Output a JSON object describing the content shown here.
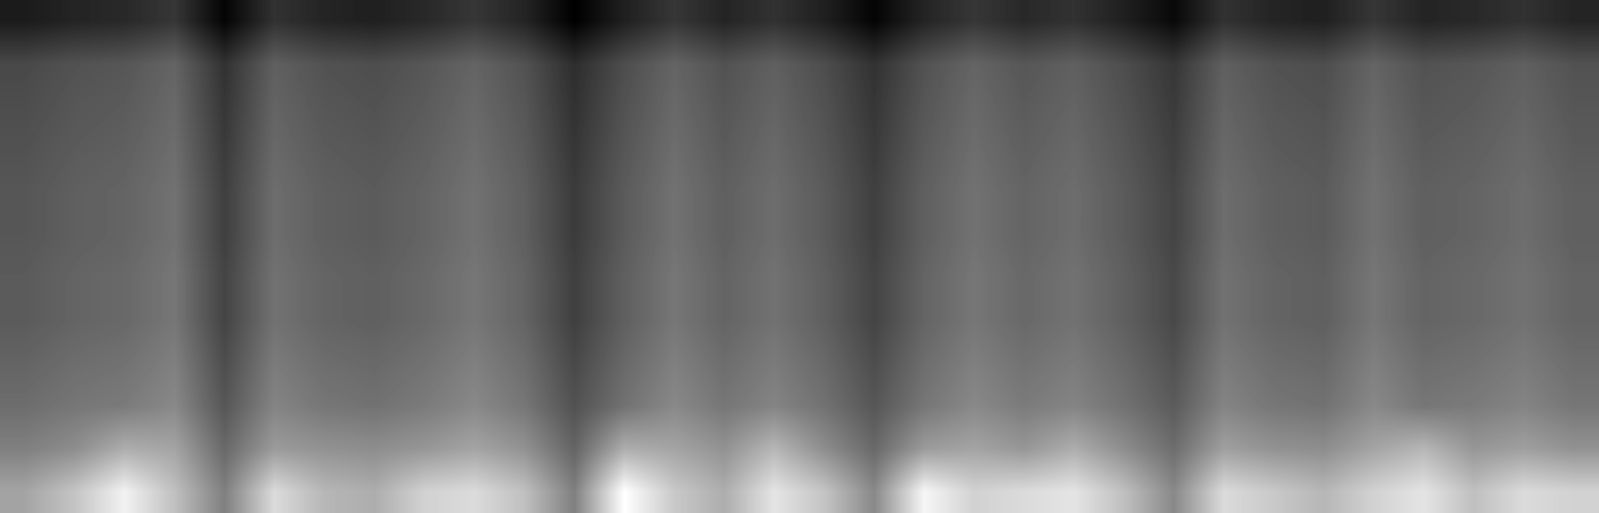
{
  "chart_data": {
    "type": "heatmap",
    "color": "gray",
    "tick_labels": false,
    "cells": [
      [
        8,
        10,
        11,
        14,
        3,
        13,
        10,
        9,
        11,
        14,
        10,
        2,
        9,
        14,
        10,
        13,
        9,
        3,
        10,
        14,
        11,
        13,
        9,
        4,
        13,
        10,
        9,
        14,
        10,
        11,
        13,
        10
      ],
      [
        18,
        20,
        21,
        24,
        13,
        23,
        20,
        19,
        21,
        24,
        20,
        12,
        19,
        24,
        20,
        23,
        19,
        13,
        20,
        24,
        21,
        23,
        19,
        14,
        23,
        20,
        19,
        24,
        20,
        21,
        23,
        20
      ],
      [
        19,
        21,
        22,
        25,
        14,
        24,
        21,
        20,
        22,
        25,
        21,
        13,
        20,
        25,
        21,
        24,
        20,
        14,
        21,
        25,
        22,
        24,
        20,
        15,
        24,
        21,
        20,
        25,
        21,
        22,
        24,
        21
      ],
      [
        20,
        22,
        23,
        26,
        15,
        25,
        22,
        21,
        23,
        26,
        22,
        14,
        21,
        26,
        22,
        25,
        21,
        15,
        22,
        26,
        23,
        25,
        21,
        16,
        25,
        22,
        21,
        26,
        22,
        23,
        25,
        22
      ],
      [
        21,
        23,
        24,
        27,
        16,
        26,
        23,
        22,
        24,
        27,
        23,
        15,
        22,
        27,
        23,
        26,
        22,
        16,
        23,
        27,
        24,
        26,
        22,
        17,
        26,
        23,
        22,
        27,
        23,
        24,
        26,
        23
      ],
      [
        21,
        23,
        24,
        27,
        16,
        26,
        23,
        22,
        24,
        27,
        23,
        15,
        22,
        27,
        23,
        26,
        22,
        16,
        23,
        27,
        24,
        26,
        22,
        17,
        26,
        23,
        22,
        27,
        23,
        24,
        26,
        23
      ],
      [
        22,
        24,
        25,
        28,
        17,
        27,
        24,
        23,
        25,
        28,
        24,
        16,
        23,
        28,
        24,
        27,
        23,
        17,
        24,
        28,
        25,
        27,
        23,
        18,
        27,
        24,
        23,
        28,
        24,
        25,
        27,
        24
      ],
      [
        22,
        24,
        25,
        28,
        17,
        27,
        24,
        23,
        25,
        28,
        24,
        16,
        23,
        28,
        24,
        27,
        23,
        17,
        24,
        28,
        25,
        27,
        23,
        18,
        27,
        24,
        23,
        28,
        24,
        25,
        27,
        24
      ],
      [
        24,
        26,
        27,
        30,
        19,
        29,
        26,
        25,
        27,
        30,
        26,
        18,
        25,
        30,
        26,
        29,
        25,
        19,
        26,
        30,
        27,
        29,
        25,
        20,
        29,
        26,
        25,
        30,
        26,
        27,
        29,
        26
      ],
      [
        26,
        28,
        29,
        32,
        21,
        31,
        28,
        27,
        29,
        32,
        28,
        20,
        27,
        32,
        28,
        31,
        27,
        21,
        28,
        32,
        29,
        31,
        27,
        22,
        31,
        28,
        27,
        32,
        28,
        29,
        31,
        28
      ],
      [
        30,
        33,
        40,
        38,
        25,
        36,
        34,
        33,
        35,
        38,
        34,
        24,
        40,
        38,
        34,
        42,
        33,
        25,
        36,
        38,
        35,
        40,
        33,
        26,
        37,
        34,
        33,
        38,
        42,
        35,
        37,
        34
      ],
      [
        38,
        45,
        55,
        44,
        30,
        50,
        42,
        40,
        48,
        50,
        44,
        30,
        58,
        46,
        40,
        52,
        45,
        32,
        56,
        48,
        50,
        52,
        44,
        32,
        50,
        46,
        42,
        48,
        52,
        44,
        50,
        48
      ]
    ]
  }
}
